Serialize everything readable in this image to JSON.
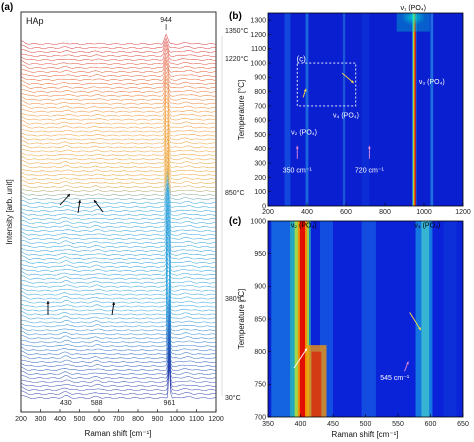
{
  "chart_data": [
    {
      "panel": "(a)",
      "type": "line",
      "sample": "HAp",
      "xlabel": "Raman shift [cm⁻¹]",
      "ylabel": "Intensity [arb. unit]",
      "xlim": [
        200,
        1200
      ],
      "xticks": [
        200,
        300,
        400,
        500,
        600,
        700,
        800,
        900,
        1000,
        1100,
        1200
      ],
      "temperature_range": [
        30,
        1350
      ],
      "temperature_labels": [
        "1350°C",
        "1220°C",
        "850°C",
        "380°C",
        "30°C"
      ],
      "label_colors": [
        "#d8232a",
        "#f08a1c",
        "#e8a12b",
        "#1f9ad8",
        "#2530a8"
      ],
      "peak_labels": [
        {
          "text": "944",
          "x": 944
        },
        {
          "text": "430",
          "x": 430
        },
        {
          "text": "588",
          "x": 588
        },
        {
          "text": "961",
          "x": 961
        }
      ]
    },
    {
      "panel": "(b)",
      "type": "heatmap",
      "xlim": [
        200,
        1200
      ],
      "xticks": [
        200,
        400,
        600,
        800,
        1000,
        1200
      ],
      "ylim": [
        0,
        1350
      ],
      "yticks": [
        0,
        100,
        200,
        300,
        400,
        500,
        600,
        700,
        800,
        900,
        1000,
        1100,
        1200,
        1300
      ],
      "ylabel": "Temperature [°C]",
      "annotations": [
        {
          "text": "ν₁ (PO₄)",
          "x": 945,
          "y": 1330
        },
        {
          "text": "ν₃ (PO₄)",
          "x": 1040,
          "y": 855
        },
        {
          "text": "ν₄ (PO₄)",
          "x": 600,
          "y": 620
        },
        {
          "text": "ν₂ (PO₄)",
          "x": 385,
          "y": 500
        },
        {
          "text": "350 cm⁻¹",
          "x": 350,
          "y": 235
        },
        {
          "text": "720 cm⁻¹",
          "x": 720,
          "y": 235
        },
        {
          "text": "(c)",
          "x": 370,
          "y": 1010
        }
      ]
    },
    {
      "panel": "(c)",
      "type": "heatmap",
      "xlabel": "Raman shift [cm⁻¹]",
      "ylabel": "Temperature [°C]",
      "xlim": [
        350,
        650
      ],
      "xticks": [
        350,
        400,
        450,
        500,
        550,
        600,
        650
      ],
      "ylim": [
        700,
        1000
      ],
      "yticks": [
        700,
        750,
        800,
        850,
        900,
        950,
        1000
      ],
      "annotations": [
        {
          "text": "ν₂ (PO₄)",
          "x": 405,
          "y": 990
        },
        {
          "text": "ν₄ (PO₄)",
          "x": 595,
          "y": 990
        },
        {
          "text": "545 cm⁻¹",
          "x": 545,
          "y": 757
        }
      ]
    }
  ]
}
